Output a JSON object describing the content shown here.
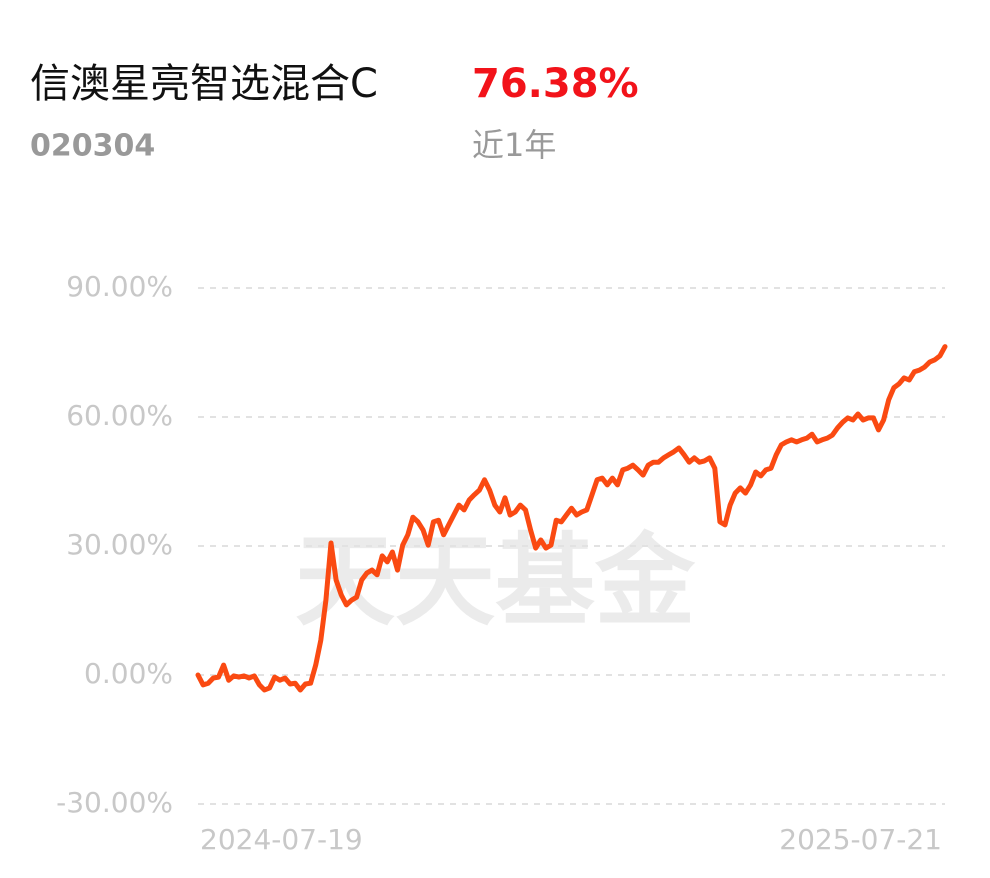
{
  "chart_data": {
    "type": "line",
    "title": "信澳星亮智选混合C",
    "code": "020304",
    "return_label": "76.38%",
    "period": "近1年",
    "watermark": "天天基金",
    "categories": [
      "2024-07-19",
      null,
      null,
      null,
      null,
      null,
      null,
      null,
      null,
      null,
      null,
      null,
      null,
      null,
      null,
      null,
      null,
      null,
      null,
      null,
      null,
      null,
      null,
      null,
      null,
      null,
      null,
      null,
      null,
      null,
      null,
      null,
      null,
      null,
      null,
      null,
      null,
      null,
      null,
      null,
      null,
      null,
      null,
      null,
      null,
      null,
      null,
      null,
      null,
      null,
      null,
      null,
      null,
      null,
      null,
      null,
      null,
      null,
      null,
      null,
      null,
      null,
      null,
      null,
      null,
      null,
      null,
      null,
      null,
      null,
      null,
      null,
      null,
      null,
      null,
      null,
      null,
      null,
      null,
      null,
      null,
      null,
      null,
      null,
      null,
      null,
      null,
      null,
      null,
      null,
      null,
      null,
      null,
      null,
      null,
      null,
      null,
      null,
      null,
      null,
      null,
      null,
      null,
      null,
      null,
      null,
      null,
      null,
      null,
      null,
      null,
      null,
      null,
      null,
      null,
      null,
      null,
      null,
      null,
      null,
      null,
      null,
      null,
      null,
      null,
      null,
      null,
      null,
      null,
      null,
      null,
      null,
      null,
      null,
      null,
      null,
      null,
      null,
      null,
      null,
      null,
      null,
      null,
      null,
      null,
      null,
      "2025-07-21"
    ],
    "series": [
      {
        "color": "#fa4a12",
        "values": [
          0,
          -2.3,
          -1.9,
          -0.7,
          -0.5,
          2.3,
          -1.2,
          -0.2,
          -0.5,
          -0.2,
          -0.7,
          -0.2,
          -2.3,
          -3.5,
          -3.0,
          -0.5,
          -1.2,
          -0.7,
          -2.1,
          -1.9,
          -3.5,
          -2.1,
          -1.9,
          2.3,
          8.1,
          17.4,
          30.7,
          22.1,
          18.6,
          16.3,
          17.4,
          18.1,
          22.1,
          23.7,
          24.4,
          23.3,
          27.7,
          26.3,
          28.6,
          24.4,
          30.2,
          32.6,
          36.7,
          35.6,
          33.7,
          30.2,
          35.6,
          36.0,
          32.6,
          34.9,
          37.2,
          39.5,
          38.4,
          40.7,
          41.9,
          43.0,
          45.4,
          43.0,
          39.5,
          37.9,
          41.2,
          37.2,
          37.9,
          39.5,
          38.4,
          33.7,
          29.5,
          31.4,
          29.5,
          30.2,
          36.0,
          35.6,
          37.2,
          38.8,
          37.2,
          37.9,
          38.4,
          41.9,
          45.4,
          45.8,
          44.2,
          45.8,
          44.2,
          47.7,
          48.1,
          48.8,
          47.7,
          46.5,
          48.8,
          49.5,
          49.5,
          50.5,
          51.2,
          51.9,
          52.8,
          51.2,
          49.5,
          50.5,
          49.5,
          49.8,
          50.5,
          48.1,
          35.6,
          34.9,
          39.5,
          42.3,
          43.5,
          42.3,
          44.2,
          47.2,
          46.3,
          47.7,
          48.1,
          51.2,
          53.5,
          54.2,
          54.7,
          54.2,
          54.7,
          55.1,
          56.0,
          54.2,
          54.7,
          55.1,
          55.8,
          57.5,
          58.8,
          59.8,
          59.3,
          60.7,
          59.3,
          59.8,
          59.8,
          57.0,
          59.3,
          64.0,
          66.8,
          67.7,
          69.1,
          68.6,
          70.5,
          70.9,
          71.6,
          72.8,
          73.3,
          74.2,
          76.38
        ]
      }
    ],
    "ylim": [
      -30,
      90
    ],
    "yticks": [
      {
        "value": -30,
        "label": "-30.00%"
      },
      {
        "value": 0,
        "label": "0.00%"
      },
      {
        "value": 30,
        "label": "30.00%"
      },
      {
        "value": 60,
        "label": "60.00%"
      },
      {
        "value": 90,
        "label": "90.00%"
      }
    ],
    "grid": true
  }
}
